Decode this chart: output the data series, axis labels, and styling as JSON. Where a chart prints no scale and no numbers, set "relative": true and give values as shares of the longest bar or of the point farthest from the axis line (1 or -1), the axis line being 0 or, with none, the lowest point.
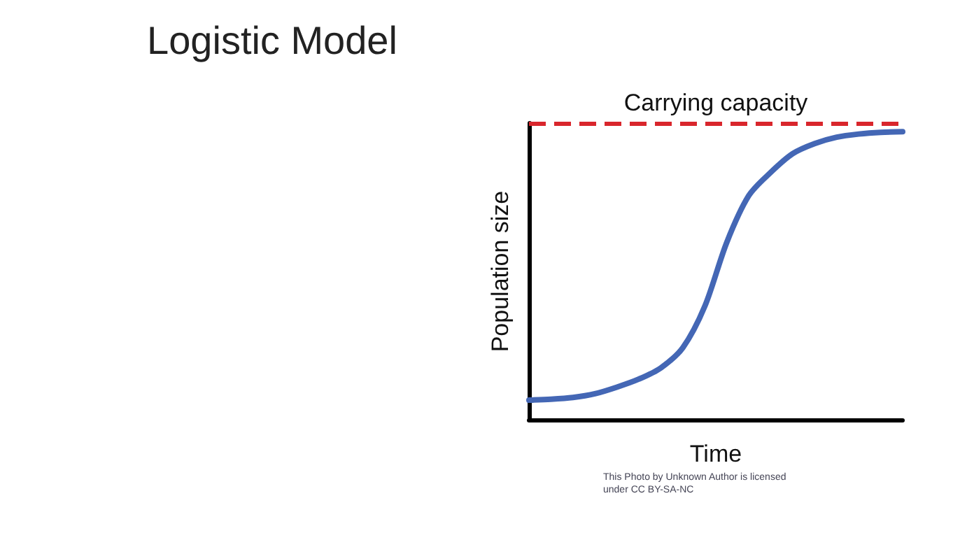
{
  "chart_data": {
    "type": "line",
    "title": "Logistic Model",
    "xlabel": "Time",
    "ylabel": "Population size",
    "relative": true,
    "categories": [
      null,
      null,
      null,
      null,
      null,
      null,
      null,
      null,
      null,
      null,
      null,
      null,
      null,
      null,
      null,
      null,
      null,
      null
    ],
    "series": [
      {
        "color": "#4467b5",
        "values": [
          0.068,
          0.071,
          0.077,
          0.09,
          0.113,
          0.141,
          0.18,
          0.25,
          0.394,
          0.616,
          0.778,
          0.859,
          0.924,
          0.959,
          0.981,
          0.992,
          0.998,
          1
        ]
      }
    ],
    "ref_lines": [
      {
        "axis": "y",
        "value": 1.03,
        "label": "Carrying capacity",
        "color": "#d9262c",
        "line_style": "dashed"
      }
    ],
    "annotations": [
      "This Photo by Unknown Author is licensed under CC BY-SA-NC"
    ],
    "grid": false,
    "marker": "none",
    "line_style": "solid"
  }
}
